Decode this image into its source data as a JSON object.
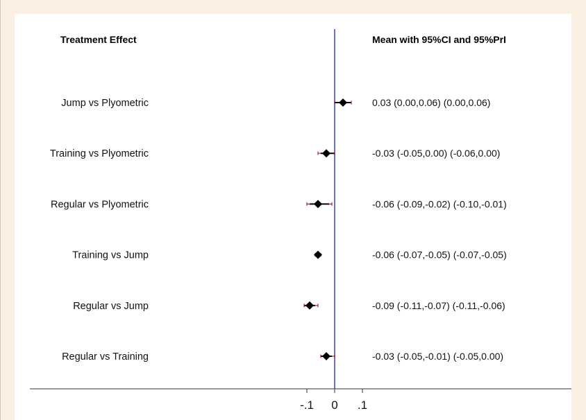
{
  "chart_data": {
    "type": "forest",
    "left_header": "Treatment Effect",
    "right_header": "Mean with 95%CI and 95%PrI",
    "x_ticks": [
      -0.1,
      0,
      0.1
    ],
    "x_tick_labels": [
      "-.1",
      "0",
      ".1"
    ],
    "xlim": [
      -0.22,
      0.06
    ],
    "rows": [
      {
        "label": "Jump vs Plyometric",
        "mean": 0.03,
        "ci": [
          0.0,
          0.06
        ],
        "pri": [
          0.0,
          0.06
        ],
        "text": "0.03 (0.00,0.06)  (0.00,0.06)"
      },
      {
        "label": "Training vs Plyometric",
        "mean": -0.03,
        "ci": [
          -0.05,
          0.0
        ],
        "pri": [
          -0.06,
          0.0
        ],
        "text": "-0.03 (-0.05,0.00)  (-0.06,0.00)"
      },
      {
        "label": "Regular vs Plyometric",
        "mean": -0.06,
        "ci": [
          -0.09,
          -0.02
        ],
        "pri": [
          -0.1,
          -0.01
        ],
        "text": "-0.06 (-0.09,-0.02)  (-0.10,-0.01)"
      },
      {
        "label": "Training vs Jump",
        "mean": -0.06,
        "ci": [
          -0.07,
          -0.05
        ],
        "pri": [
          -0.07,
          -0.05
        ],
        "text": "-0.06 (-0.07,-0.05)  (-0.07,-0.05)"
      },
      {
        "label": "Regular vs Jump",
        "mean": -0.09,
        "ci": [
          -0.11,
          -0.07
        ],
        "pri": [
          -0.11,
          -0.06
        ],
        "text": "-0.09 (-0.11,-0.07)  (-0.11,-0.06)"
      },
      {
        "label": "Regular vs Training",
        "mean": -0.03,
        "ci": [
          -0.05,
          -0.01
        ],
        "pri": [
          -0.05,
          0.0
        ],
        "text": "-0.03 (-0.05,-0.01)  (-0.05,0.00)"
      }
    ],
    "colors": {
      "reference_line": "#4a4ad8",
      "ci_line": "#000000",
      "pri_line": "#b0202a",
      "marker": "#000000",
      "background": "#fbeee3",
      "plot_background": "#ffffff"
    }
  }
}
